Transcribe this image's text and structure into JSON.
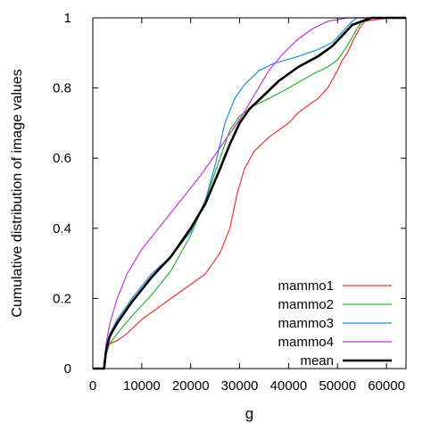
{
  "chart_data": {
    "type": "line",
    "title": "",
    "xlabel": "g",
    "ylabel": "Cumulative distribution of image values",
    "xlim": [
      0,
      64000
    ],
    "ylim": [
      0,
      1
    ],
    "xticks": [
      0,
      10000,
      20000,
      30000,
      40000,
      50000,
      60000
    ],
    "xtick_labels": [
      "0",
      "10000",
      "20000",
      "30000",
      "40000",
      "50000",
      "60000"
    ],
    "yticks": [
      0,
      0.2,
      0.4,
      0.6,
      0.8,
      1
    ],
    "ytick_labels": [
      "0",
      "0.2",
      "0.4",
      "0.6",
      "0.8",
      "1"
    ],
    "grid": false,
    "legend_position": "bottom-right",
    "series": [
      {
        "name": "mammo1",
        "color": "#e8382f",
        "width": 1.2,
        "points": [
          [
            0,
            0
          ],
          [
            2300,
            0
          ],
          [
            2700,
            0.04
          ],
          [
            3400,
            0.07
          ],
          [
            5000,
            0.08
          ],
          [
            7000,
            0.1
          ],
          [
            10000,
            0.14
          ],
          [
            15000,
            0.19
          ],
          [
            20000,
            0.24
          ],
          [
            23000,
            0.27
          ],
          [
            26000,
            0.33
          ],
          [
            28000,
            0.4
          ],
          [
            29500,
            0.5
          ],
          [
            31000,
            0.57
          ],
          [
            33000,
            0.62
          ],
          [
            36000,
            0.66
          ],
          [
            40000,
            0.7
          ],
          [
            42000,
            0.73
          ],
          [
            44000,
            0.75
          ],
          [
            46000,
            0.77
          ],
          [
            48000,
            0.8
          ],
          [
            50000,
            0.85
          ],
          [
            51000,
            0.88
          ],
          [
            52000,
            0.9
          ],
          [
            53000,
            0.93
          ],
          [
            54500,
            0.97
          ],
          [
            55500,
            0.99
          ],
          [
            60500,
            1.0
          ],
          [
            64000,
            1.0
          ]
        ]
      },
      {
        "name": "mammo2",
        "color": "#2fb02f",
        "width": 1.2,
        "points": [
          [
            0,
            0
          ],
          [
            2300,
            0
          ],
          [
            2700,
            0.04
          ],
          [
            3400,
            0.07
          ],
          [
            5000,
            0.1
          ],
          [
            8000,
            0.15
          ],
          [
            12000,
            0.21
          ],
          [
            16000,
            0.28
          ],
          [
            20000,
            0.38
          ],
          [
            23000,
            0.48
          ],
          [
            26000,
            0.6
          ],
          [
            28000,
            0.68
          ],
          [
            30000,
            0.72
          ],
          [
            33000,
            0.75
          ],
          [
            36000,
            0.77
          ],
          [
            40000,
            0.8
          ],
          [
            45000,
            0.84
          ],
          [
            48000,
            0.86
          ],
          [
            50000,
            0.88
          ],
          [
            52000,
            0.92
          ],
          [
            54000,
            0.97
          ],
          [
            55000,
            0.99
          ],
          [
            56000,
            1.0
          ],
          [
            64000,
            1.0
          ]
        ]
      },
      {
        "name": "mammo3",
        "color": "#1f8fdb",
        "width": 1.2,
        "points": [
          [
            0,
            0
          ],
          [
            2300,
            0
          ],
          [
            2700,
            0.05
          ],
          [
            3500,
            0.1
          ],
          [
            5000,
            0.14
          ],
          [
            8000,
            0.2
          ],
          [
            12000,
            0.27
          ],
          [
            16000,
            0.32
          ],
          [
            20000,
            0.39
          ],
          [
            23000,
            0.48
          ],
          [
            25000,
            0.58
          ],
          [
            27000,
            0.7
          ],
          [
            29000,
            0.77
          ],
          [
            31000,
            0.81
          ],
          [
            34000,
            0.85
          ],
          [
            37000,
            0.87
          ],
          [
            42000,
            0.89
          ],
          [
            46000,
            0.91
          ],
          [
            49000,
            0.93
          ],
          [
            51000,
            0.96
          ],
          [
            53000,
            0.99
          ],
          [
            54000,
            1.0
          ],
          [
            64000,
            1.0
          ]
        ]
      },
      {
        "name": "mammo4",
        "color": "#c832e0",
        "width": 1.2,
        "points": [
          [
            0,
            0
          ],
          [
            2300,
            0
          ],
          [
            2700,
            0.07
          ],
          [
            3500,
            0.13
          ],
          [
            5000,
            0.2
          ],
          [
            7000,
            0.27
          ],
          [
            10000,
            0.34
          ],
          [
            14000,
            0.41
          ],
          [
            18000,
            0.48
          ],
          [
            22000,
            0.55
          ],
          [
            26000,
            0.63
          ],
          [
            30000,
            0.71
          ],
          [
            33000,
            0.78
          ],
          [
            36000,
            0.85
          ],
          [
            39000,
            0.9
          ],
          [
            42000,
            0.94
          ],
          [
            45000,
            0.97
          ],
          [
            48000,
            0.99
          ],
          [
            52000,
            1.0
          ],
          [
            64000,
            1.0
          ]
        ]
      },
      {
        "name": "mean",
        "color": "#000000",
        "width": 2.6,
        "points": [
          [
            0,
            0
          ],
          [
            2300,
            0
          ],
          [
            2700,
            0.05
          ],
          [
            3400,
            0.09
          ],
          [
            5000,
            0.13
          ],
          [
            8000,
            0.19
          ],
          [
            12000,
            0.26
          ],
          [
            16000,
            0.32
          ],
          [
            20000,
            0.4
          ],
          [
            23000,
            0.47
          ],
          [
            26000,
            0.57
          ],
          [
            28000,
            0.64
          ],
          [
            30000,
            0.7
          ],
          [
            32000,
            0.74
          ],
          [
            35000,
            0.78
          ],
          [
            38000,
            0.82
          ],
          [
            42000,
            0.86
          ],
          [
            46000,
            0.89
          ],
          [
            49000,
            0.92
          ],
          [
            51000,
            0.95
          ],
          [
            53000,
            0.98
          ],
          [
            55000,
            0.99
          ],
          [
            57000,
            1.0
          ],
          [
            64000,
            1.0
          ]
        ]
      }
    ]
  }
}
